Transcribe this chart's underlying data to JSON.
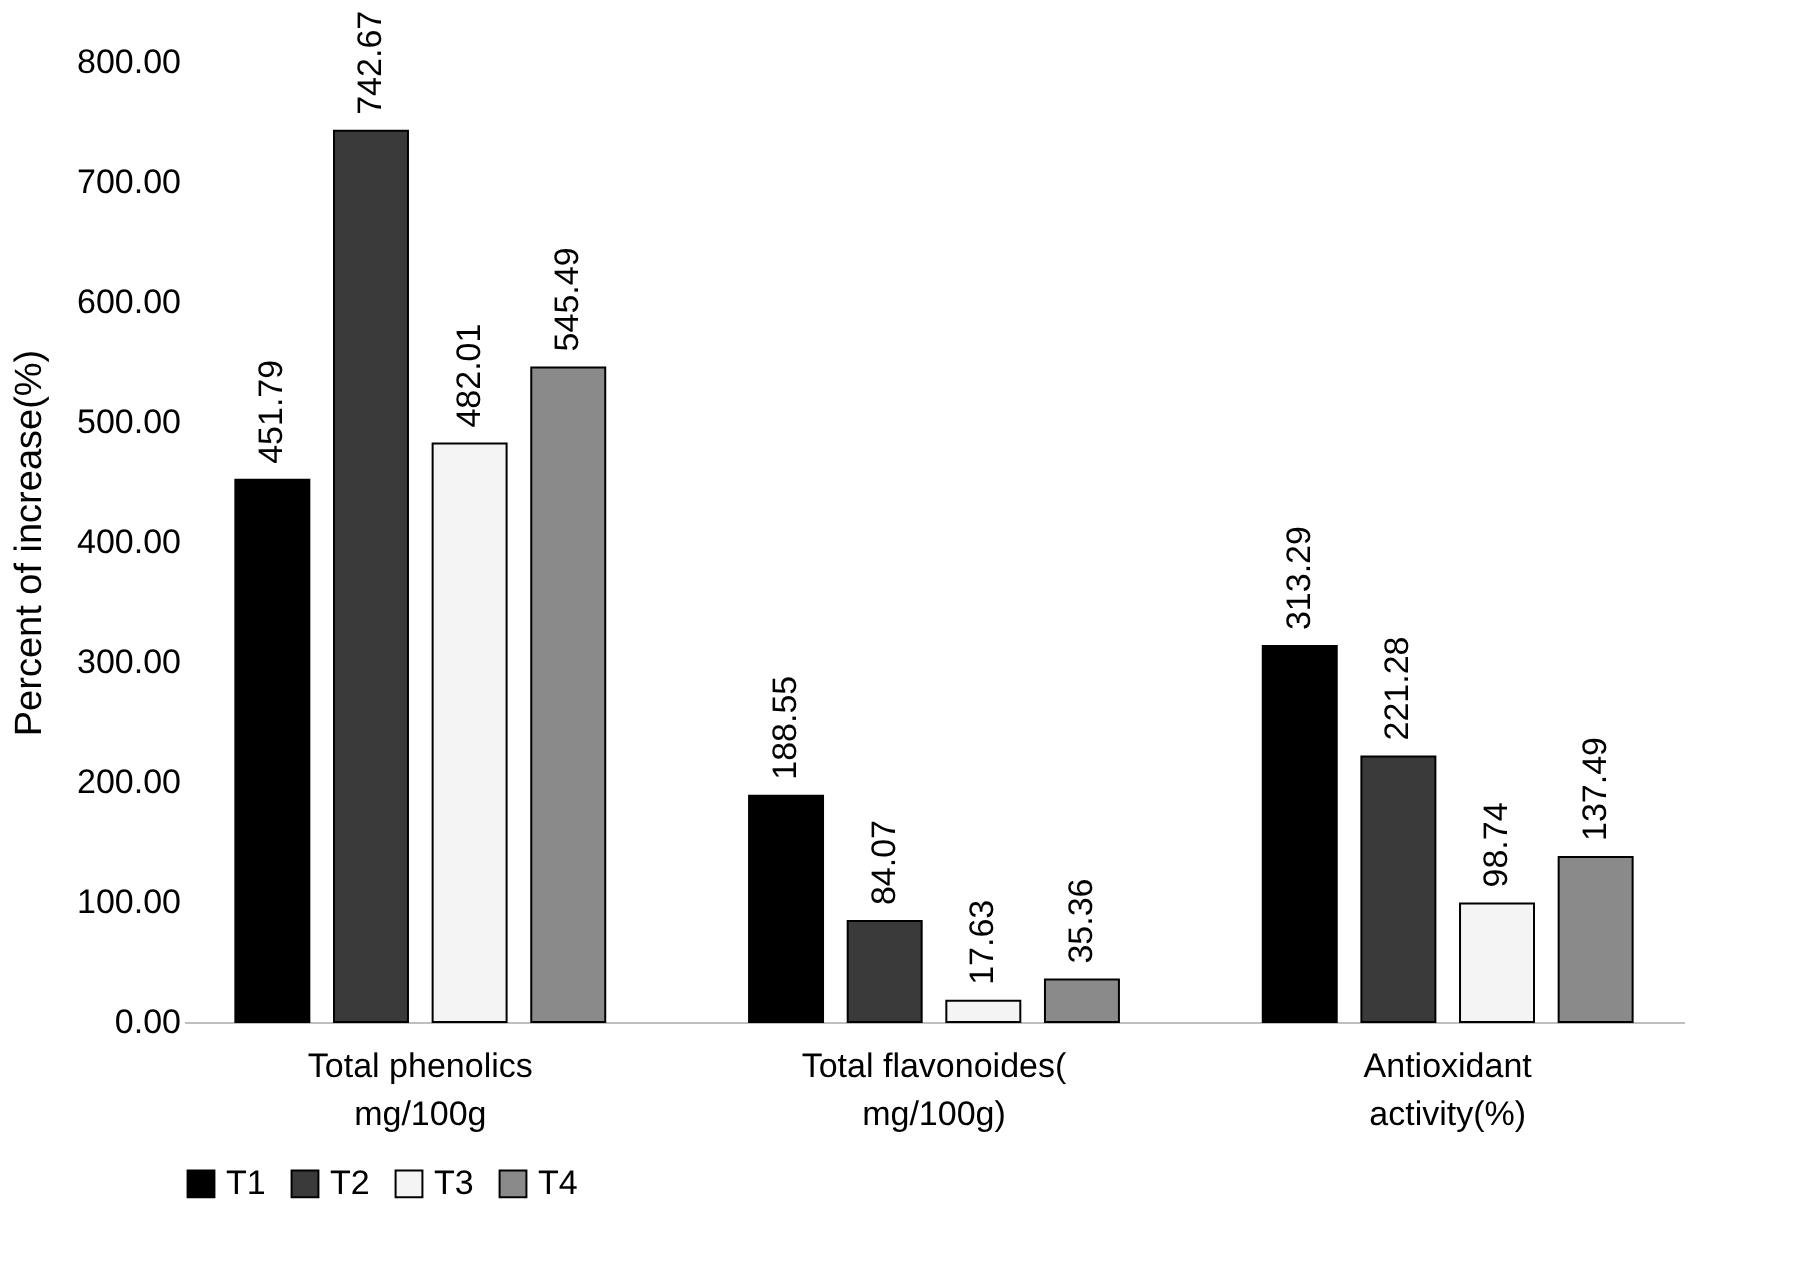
{
  "chart_data": {
    "type": "bar",
    "ylabel": "Percent of increase(%)",
    "categories": [
      "Total phenolics mg/100g",
      "Total flavonoides( mg/100g)",
      "Antioxidant activity(%)"
    ],
    "series": [
      {
        "name": "T1",
        "color": "#000000",
        "values": [
          451.79,
          188.55,
          313.29
        ]
      },
      {
        "name": "T2",
        "color": "#3a3a3a",
        "values": [
          742.67,
          84.07,
          221.28
        ]
      },
      {
        "name": "T3",
        "color": "#f4f4f4",
        "values": [
          482.01,
          17.63,
          98.74
        ]
      },
      {
        "name": "T4",
        "color": "#8a8a8a",
        "values": [
          545.49,
          35.36,
          137.49
        ]
      }
    ],
    "ylim": [
      0,
      800
    ],
    "yticks": [
      {
        "value": 0,
        "label": "0.00"
      },
      {
        "value": 100,
        "label": "100.00"
      },
      {
        "value": 200,
        "label": "200.00"
      },
      {
        "value": 300,
        "label": "300.00"
      },
      {
        "value": 400,
        "label": "400.00"
      },
      {
        "value": 500,
        "label": "500.00"
      },
      {
        "value": 600,
        "label": "600.00"
      },
      {
        "value": 700,
        "label": "700.00"
      },
      {
        "value": 800,
        "label": "800.00"
      }
    ],
    "data_labels": true,
    "grid": false,
    "legend": "bottom"
  }
}
